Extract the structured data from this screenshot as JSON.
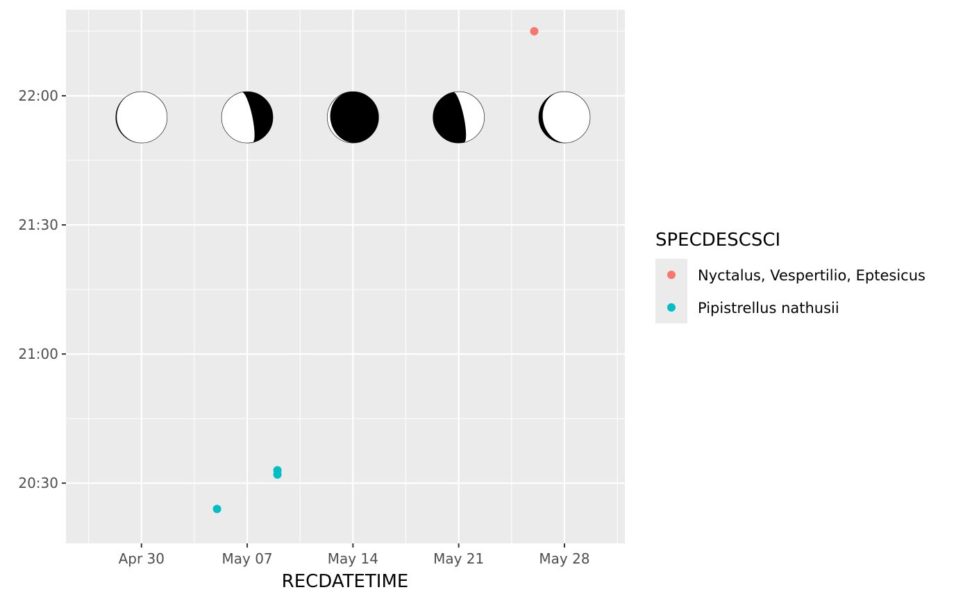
{
  "chart_data": {
    "type": "scatter",
    "title": "",
    "xlabel": "RECDATETIME",
    "ylabel": "",
    "x_ticks": [
      "Apr 30",
      "May 07",
      "May 14",
      "May 21",
      "May 28"
    ],
    "x_tick_dates": [
      "2023-04-30",
      "2023-05-07",
      "2023-05-14",
      "2023-05-21",
      "2023-05-28"
    ],
    "xlim": [
      "2023-04-25",
      "2023-06-01"
    ],
    "y_ticks": [
      "20:30",
      "21:00",
      "21:30",
      "22:00"
    ],
    "ylim": [
      "20:16",
      "22:20"
    ],
    "grid": true,
    "panel_background": "#ebebeb",
    "legend": {
      "title": "SPECDESCSCI",
      "position": "right"
    },
    "series": [
      {
        "name": "Nyctalus, Vespertilio, Eptesicus",
        "color": "#f8766d",
        "points": [
          {
            "date": "2023-05-26",
            "time": "22:15"
          }
        ]
      },
      {
        "name": "Pipistrellus nathusii",
        "color": "#00bfc4",
        "points": [
          {
            "date": "2023-05-05",
            "time": "20:24"
          },
          {
            "date": "2023-05-09",
            "time": "20:33"
          },
          {
            "date": "2023-05-09",
            "time": "20:32"
          }
        ]
      }
    ],
    "moon_phases": [
      {
        "date": "2023-04-30",
        "time": "21:55",
        "phase": "waxing-gibbous",
        "lit_fraction": 0.98
      },
      {
        "date": "2023-05-07",
        "time": "21:55",
        "phase": "waning-gibbous",
        "lit_fraction": 0.6
      },
      {
        "date": "2023-05-14",
        "time": "21:55",
        "phase": "waning-crescent",
        "lit_fraction": 0.06
      },
      {
        "date": "2023-05-21",
        "time": "21:55",
        "phase": "waxing-crescent",
        "lit_fraction": 0.4
      },
      {
        "date": "2023-05-28",
        "time": "21:55",
        "phase": "waxing-gibbous",
        "lit_fraction": 0.92
      }
    ]
  }
}
